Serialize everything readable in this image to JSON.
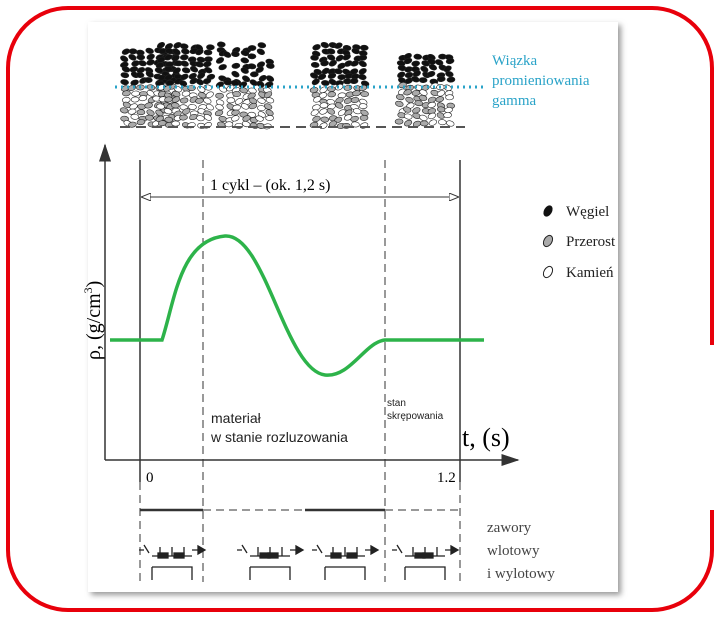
{
  "beam_label": [
    "Wiązka",
    "promieniowania",
    "gamma"
  ],
  "axis": {
    "y_label": "ρ,  (g/cm",
    "y_label_sup": "3",
    "y_label_end": ")",
    "x_label": "t, (s)",
    "x_ticks": [
      "0",
      "1.2"
    ]
  },
  "cycle_label": "1 cykl – (ok. 1,2 s)",
  "legend": [
    "Węgiel",
    "Przerost",
    "Kamień"
  ],
  "loose_label": [
    "materiał",
    "w stanie rozluzowania"
  ],
  "tight_label": [
    "stan",
    "skrępowania"
  ],
  "valves_label": [
    "zawory",
    "wlotowy",
    "i wylotowy"
  ]
}
